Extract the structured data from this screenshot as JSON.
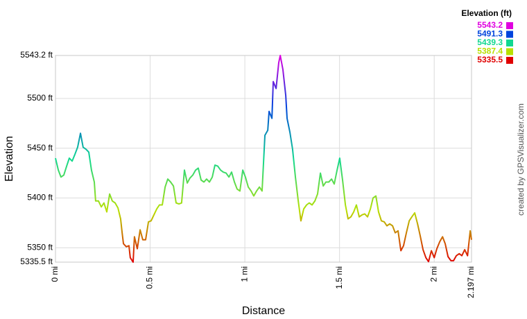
{
  "chart_data": {
    "type": "line",
    "xlabel": "Distance",
    "ylabel": "Elevation",
    "credit": "created by GPSVisualizer.com",
    "legend_title": "Elevation (ft)",
    "colorscale": [
      {
        "value": 5543.2,
        "color": "#e000e0"
      },
      {
        "value": 5491.3,
        "color": "#0044dd"
      },
      {
        "value": 5439.3,
        "color": "#10d890"
      },
      {
        "value": 5387.4,
        "color": "#b8e000"
      },
      {
        "value": 5335.5,
        "color": "#e00000"
      }
    ],
    "legend": "top-right",
    "grid": true,
    "xlim": [
      0,
      2.197
    ],
    "ylim": [
      5335.5,
      5543.2
    ],
    "xticks": [
      {
        "value": 0,
        "label": "0 mi"
      },
      {
        "value": 0.5,
        "label": "0.5 mi"
      },
      {
        "value": 1,
        "label": "1 mi"
      },
      {
        "value": 1.5,
        "label": "1.5 mi"
      },
      {
        "value": 2,
        "label": "2 mi"
      },
      {
        "value": 2.197,
        "label": "2.197 mi"
      }
    ],
    "yticks": [
      {
        "value": 5335.5,
        "label": "5335.5 ft"
      },
      {
        "value": 5350,
        "label": "5350 ft"
      },
      {
        "value": 5400,
        "label": "5400 ft"
      },
      {
        "value": 5450,
        "label": "5450 ft"
      },
      {
        "value": 5500,
        "label": "5500 ft"
      },
      {
        "value": 5543.2,
        "label": "5543.2 ft"
      }
    ],
    "x": [
      0,
      0.015,
      0.029,
      0.044,
      0.059,
      0.073,
      0.088,
      0.103,
      0.117,
      0.132,
      0.146,
      0.161,
      0.176,
      0.19,
      0.205,
      0.212,
      0.227,
      0.242,
      0.256,
      0.271,
      0.286,
      0.3,
      0.315,
      0.33,
      0.344,
      0.352,
      0.359,
      0.374,
      0.388,
      0.395,
      0.41,
      0.417,
      0.432,
      0.447,
      0.461,
      0.476,
      0.491,
      0.505,
      0.52,
      0.535,
      0.549,
      0.564,
      0.579,
      0.593,
      0.608,
      0.623,
      0.637,
      0.652,
      0.666,
      0.681,
      0.696,
      0.71,
      0.725,
      0.74,
      0.754,
      0.769,
      0.784,
      0.798,
      0.813,
      0.828,
      0.842,
      0.857,
      0.872,
      0.886,
      0.901,
      0.916,
      0.93,
      0.945,
      0.959,
      0.974,
      0.989,
      1.003,
      1.018,
      1.033,
      1.047,
      1.062,
      1.077,
      1.091,
      1.106,
      1.121,
      1.128,
      1.143,
      1.15,
      1.165,
      1.179,
      1.187,
      1.201,
      1.216,
      1.223,
      1.238,
      1.252,
      1.267,
      1.282,
      1.296,
      1.311,
      1.326,
      1.34,
      1.355,
      1.37,
      1.384,
      1.399,
      1.414,
      1.428,
      1.443,
      1.458,
      1.472,
      1.487,
      1.501,
      1.516,
      1.531,
      1.545,
      1.56,
      1.575,
      1.589,
      1.604,
      1.619,
      1.633,
      1.648,
      1.663,
      1.677,
      1.692,
      1.706,
      1.721,
      1.736,
      1.75,
      1.765,
      1.78,
      1.794,
      1.809,
      1.824,
      1.838,
      1.853,
      1.868,
      1.882,
      1.897,
      1.912,
      1.926,
      1.941,
      1.956,
      1.97,
      1.985,
      2.0,
      2.014,
      2.029,
      2.044,
      2.058,
      2.073,
      2.088,
      2.102,
      2.117,
      2.132,
      2.146,
      2.161,
      2.176,
      2.19,
      2.197
    ],
    "values": [
      5440,
      5428,
      5421,
      5423,
      5432,
      5440,
      5437,
      5444,
      5451,
      5465,
      5451,
      5449,
      5446,
      5428,
      5416,
      5397,
      5397,
      5391,
      5395,
      5386,
      5404,
      5397,
      5395,
      5390,
      5379,
      5365,
      5354,
      5351,
      5352,
      5340,
      5335.5,
      5361,
      5349,
      5368,
      5358,
      5358,
      5376,
      5377,
      5383,
      5389,
      5393,
      5393,
      5411,
      5419,
      5416,
      5412,
      5395,
      5394,
      5395,
      5428,
      5415,
      5420,
      5423,
      5428,
      5430,
      5418,
      5416,
      5419,
      5416,
      5421,
      5433,
      5432,
      5428,
      5426,
      5425,
      5421,
      5426,
      5416,
      5409,
      5407,
      5428,
      5421,
      5411,
      5407,
      5402,
      5407,
      5411,
      5407,
      5463,
      5468,
      5487,
      5480,
      5517,
      5510,
      5536,
      5543.2,
      5529,
      5503,
      5480,
      5466,
      5449,
      5421,
      5397,
      5377,
      5389,
      5393,
      5395,
      5393,
      5397,
      5404,
      5425,
      5412,
      5416,
      5416,
      5419,
      5414,
      5428,
      5440,
      5418,
      5393,
      5379,
      5381,
      5386,
      5393,
      5381,
      5383,
      5384,
      5381,
      5389,
      5400,
      5402,
      5386,
      5377,
      5376,
      5372,
      5374,
      5372,
      5365,
      5367,
      5347,
      5352,
      5365,
      5377,
      5381,
      5385,
      5374,
      5362,
      5348,
      5340,
      5336,
      5347,
      5340,
      5349,
      5356,
      5361,
      5354,
      5341,
      5337,
      5337,
      5342,
      5344,
      5342,
      5348,
      5342,
      5367,
      5358
    ]
  }
}
